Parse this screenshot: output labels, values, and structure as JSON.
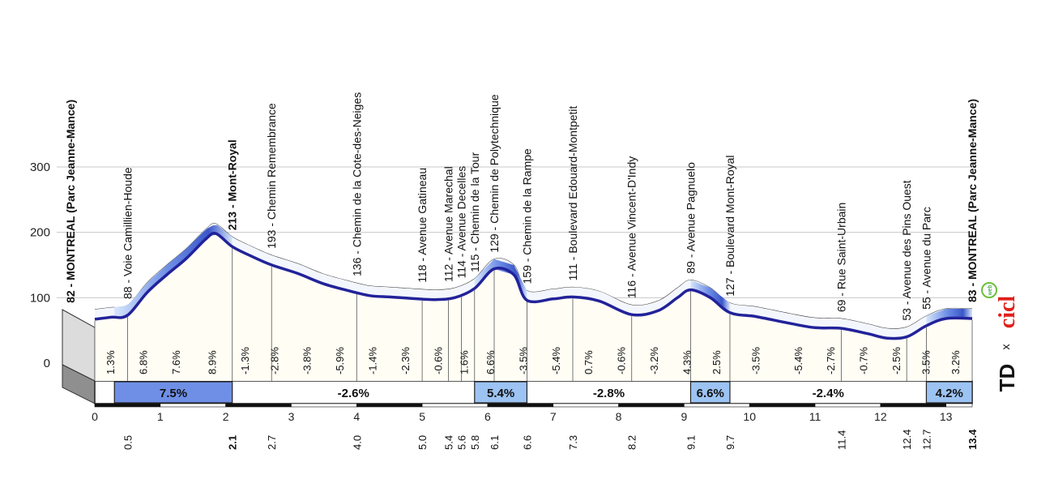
{
  "chart_data": {
    "type": "area",
    "title": "",
    "xlabel": "",
    "ylabel": "",
    "xlim": [
      0,
      13.4
    ],
    "ylim": [
      0,
      300
    ],
    "y_ticks": [
      0,
      100,
      200,
      300
    ],
    "x_ticks": [
      "0",
      "1",
      "2",
      "3",
      "4",
      "5",
      "6",
      "7",
      "8",
      "9",
      "10",
      "11",
      "12",
      "13"
    ],
    "grid": true,
    "profile": [
      [
        0,
        82
      ],
      [
        0.25,
        85
      ],
      [
        0.5,
        88
      ],
      [
        0.8,
        123
      ],
      [
        1.1,
        150
      ],
      [
        1.4,
        175
      ],
      [
        1.7,
        205
      ],
      [
        1.85,
        213
      ],
      [
        2.1,
        193
      ],
      [
        2.4,
        178
      ],
      [
        2.7,
        165
      ],
      [
        3.1,
        152
      ],
      [
        3.5,
        136
      ],
      [
        3.9,
        125
      ],
      [
        4.2,
        118
      ],
      [
        4.5,
        116
      ],
      [
        4.8,
        114
      ],
      [
        5.2,
        112
      ],
      [
        5.5,
        115
      ],
      [
        5.8,
        129
      ],
      [
        6.1,
        159
      ],
      [
        6.4,
        150
      ],
      [
        6.6,
        111
      ],
      [
        7.0,
        113
      ],
      [
        7.3,
        116
      ],
      [
        7.7,
        110
      ],
      [
        8.2,
        89
      ],
      [
        8.6,
        95
      ],
      [
        8.9,
        115
      ],
      [
        9.1,
        127
      ],
      [
        9.4,
        115
      ],
      [
        9.7,
        92
      ],
      [
        10.1,
        86
      ],
      [
        10.6,
        76
      ],
      [
        11.0,
        69
      ],
      [
        11.4,
        68
      ],
      [
        11.8,
        60
      ],
      [
        12.1,
        53
      ],
      [
        12.4,
        55
      ],
      [
        12.7,
        72
      ],
      [
        13.0,
        83
      ],
      [
        13.4,
        83
      ]
    ],
    "waypoints": [
      {
        "km": 0,
        "label": "82 - MONTREAL (Parc Jeanne-Mance)",
        "bold": true
      },
      {
        "km": 0.5,
        "label": "88 - Voie Camillien-Houde",
        "bold": false
      },
      {
        "km": 2.1,
        "label": "213 - Mont-Royal",
        "bold": true
      },
      {
        "km": 2.7,
        "label": "193 - Chemin Remembrance",
        "bold": false
      },
      {
        "km": 4.0,
        "label": "136 - Chemin de la Cote-des-Neiges",
        "bold": false
      },
      {
        "km": 5.0,
        "label": "118 - Avenue Gatineau",
        "bold": false
      },
      {
        "km": 5.4,
        "label": "112 - Avenue Marechal",
        "bold": false
      },
      {
        "km": 5.6,
        "label": "114 - Avenue Decelles",
        "bold": false
      },
      {
        "km": 5.8,
        "label": "115 - Chemin de la Tour",
        "bold": false
      },
      {
        "km": 6.1,
        "label": "129 - Chemin de Polytechnique",
        "bold": false
      },
      {
        "km": 6.6,
        "label": "159 - Chemin de la Rampe",
        "bold": false
      },
      {
        "km": 7.3,
        "label": "111 - Boulevard Edouard-Montpetit",
        "bold": false
      },
      {
        "km": 8.2,
        "label": "116 - Avenue Vincent-D'Indy",
        "bold": false
      },
      {
        "km": 9.1,
        "label": "89 - Avenue Pagnuelo",
        "bold": false
      },
      {
        "km": 9.7,
        "label": "127 - Boulevard Mont-Royal",
        "bold": false
      },
      {
        "km": 11.4,
        "label": "69 - Rue Saint-Urbain",
        "bold": false
      },
      {
        "km": 12.4,
        "label": "53 - Avenue des Pins Ouest",
        "bold": false
      },
      {
        "km": 12.7,
        "label": "55 - Avenue du Parc",
        "bold": false
      },
      {
        "km": 13.4,
        "label": "83 - MONTREAL (Parc Jeanne-Mance)",
        "bold": true
      }
    ],
    "km_labels": [
      {
        "km": 0.5,
        "label": "0.5",
        "bold": false
      },
      {
        "km": 2.1,
        "label": "2.1",
        "bold": true
      },
      {
        "km": 2.7,
        "label": "2.7",
        "bold": false
      },
      {
        "km": 4.0,
        "label": "4.0",
        "bold": false
      },
      {
        "km": 5.0,
        "label": "5.0",
        "bold": false
      },
      {
        "km": 5.4,
        "label": "5.4",
        "bold": false
      },
      {
        "km": 5.6,
        "label": "5.6",
        "bold": false
      },
      {
        "km": 5.8,
        "label": "5.8",
        "bold": false
      },
      {
        "km": 6.1,
        "label": "6.1",
        "bold": false
      },
      {
        "km": 6.6,
        "label": "6.6",
        "bold": false
      },
      {
        "km": 7.3,
        "label": "7.3",
        "bold": false
      },
      {
        "km": 8.2,
        "label": "8.2",
        "bold": false
      },
      {
        "km": 9.1,
        "label": "9.1",
        "bold": false
      },
      {
        "km": 9.7,
        "label": "9.7",
        "bold": false
      },
      {
        "km": 11.4,
        "label": "11.4",
        "bold": false
      },
      {
        "km": 12.4,
        "label": "12.4",
        "bold": false
      },
      {
        "km": 12.7,
        "label": "12.7",
        "bold": false
      },
      {
        "km": 13.4,
        "label": "13.4",
        "bold": true
      }
    ],
    "gradients": [
      {
        "from": 0,
        "to": 0.5,
        "label": "1.3%"
      },
      {
        "from": 0.5,
        "to": 1.0,
        "label": "6.8%"
      },
      {
        "from": 1.0,
        "to": 1.5,
        "label": "7.6%"
      },
      {
        "from": 1.5,
        "to": 2.1,
        "label": "8.9%"
      },
      {
        "from": 2.1,
        "to": 2.5,
        "label": "-1.3%"
      },
      {
        "from": 2.5,
        "to": 3.0,
        "label": "-2.8%"
      },
      {
        "from": 3.0,
        "to": 3.5,
        "label": "-3.8%"
      },
      {
        "from": 3.5,
        "to": 4.0,
        "label": "-5.9%"
      },
      {
        "from": 4.0,
        "to": 4.5,
        "label": "-1.4%"
      },
      {
        "from": 4.5,
        "to": 5.0,
        "label": "-2.3%"
      },
      {
        "from": 5.0,
        "to": 5.5,
        "label": "-0.6%"
      },
      {
        "from": 5.5,
        "to": 5.8,
        "label": "1.6%"
      },
      {
        "from": 5.8,
        "to": 6.3,
        "label": "6.6%"
      },
      {
        "from": 6.3,
        "to": 6.8,
        "label": "-3.5%"
      },
      {
        "from": 6.8,
        "to": 7.3,
        "label": "-5.4%"
      },
      {
        "from": 7.3,
        "to": 7.8,
        "label": "0.7%"
      },
      {
        "from": 7.8,
        "to": 8.3,
        "label": "-0.6%"
      },
      {
        "from": 8.3,
        "to": 8.8,
        "label": "-3.2%"
      },
      {
        "from": 8.8,
        "to": 9.3,
        "label": "4.3%"
      },
      {
        "from": 9.3,
        "to": 9.7,
        "label": "2.5%"
      },
      {
        "from": 9.7,
        "to": 10.5,
        "label": "-3.5%"
      },
      {
        "from": 10.5,
        "to": 11.0,
        "label": "-5.4%"
      },
      {
        "from": 11.0,
        "to": 11.5,
        "label": "-2.7%"
      },
      {
        "from": 11.5,
        "to": 12.0,
        "label": "-0.7%"
      },
      {
        "from": 12.0,
        "to": 12.5,
        "label": "-2.5%"
      },
      {
        "from": 12.5,
        "to": 12.9,
        "label": "3.5%"
      },
      {
        "from": 12.9,
        "to": 13.4,
        "label": "3.2%"
      }
    ],
    "segments": [
      {
        "from": 0.3,
        "to": 2.1,
        "label": "7.5%",
        "type": "climb"
      },
      {
        "from": 2.1,
        "to": 5.8,
        "label": "-2.6%",
        "type": "flat"
      },
      {
        "from": 5.8,
        "to": 6.6,
        "label": "5.4%",
        "type": "climb"
      },
      {
        "from": 6.6,
        "to": 9.1,
        "label": "-2.8%",
        "type": "flat"
      },
      {
        "from": 9.1,
        "to": 9.7,
        "label": "6.6%",
        "type": "climb"
      },
      {
        "from": 9.7,
        "to": 12.7,
        "label": "-2.4%",
        "type": "flat"
      },
      {
        "from": 12.7,
        "to": 13.4,
        "label": "4.2%",
        "type": "climb"
      }
    ],
    "climbs": [
      {
        "from": 0.3,
        "to": 2.1
      },
      {
        "from": 5.8,
        "to": 6.6
      },
      {
        "from": 9.1,
        "to": 9.7
      },
      {
        "from": 12.7,
        "to": 13.4
      }
    ]
  },
  "logo": {
    "text_left": "TD",
    "text_mid": "x",
    "text_right": "cicl",
    "text_web": "web"
  },
  "colors": {
    "climb_dark": "#3b57c9",
    "climb_mid": "#6f8fe6",
    "climb_light": "#d6e6fb",
    "climb_box": "#9cc3f2",
    "line": "#22229a",
    "fill": "#fffdf4",
    "base_grey": "#bfbfbf",
    "base_dark": "#8f8f8f"
  }
}
